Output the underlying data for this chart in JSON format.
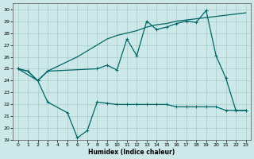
{
  "xlabel": "Humidex (Indice chaleur)",
  "bg_color": "#cce8e8",
  "grid_color": "#aacccc",
  "line_color": "#006666",
  "ylim": [
    19,
    30.5
  ],
  "yticks": [
    19,
    20,
    21,
    22,
    23,
    24,
    25,
    26,
    27,
    28,
    29,
    30
  ],
  "xlim": [
    -0.5,
    23.5
  ],
  "xticks": [
    0,
    1,
    2,
    3,
    4,
    5,
    6,
    7,
    8,
    9,
    10,
    11,
    12,
    13,
    14,
    15,
    16,
    17,
    18,
    19,
    20,
    21,
    22,
    23
  ],
  "x": [
    0,
    1,
    2,
    3,
    4,
    5,
    6,
    7,
    8,
    9,
    10,
    11,
    12,
    13,
    14,
    15,
    16,
    17,
    18,
    19,
    20,
    21,
    22,
    23
  ],
  "y_line1": [
    25.0,
    24.8,
    24.0,
    24.8,
    25.2,
    25.6,
    26.0,
    26.5,
    27.0,
    27.5,
    27.8,
    28.0,
    28.2,
    28.5,
    28.7,
    28.8,
    29.0,
    29.1,
    29.2,
    29.3,
    29.4,
    29.5,
    29.6,
    29.7
  ],
  "y_line2_x": [
    0,
    1,
    2,
    3,
    8,
    9,
    10,
    11,
    12,
    13,
    14,
    15,
    16,
    17,
    18,
    19,
    20,
    21,
    22,
    23
  ],
  "y_line2": [
    25.0,
    24.8,
    24.0,
    24.8,
    25.0,
    25.3,
    24.9,
    27.5,
    26.1,
    29.0,
    28.3,
    28.5,
    28.8,
    29.0,
    28.9,
    29.9,
    26.1,
    24.2,
    21.5,
    21.5
  ],
  "y_line3_x": [
    0,
    2,
    3,
    5,
    6,
    7,
    8,
    9,
    10,
    11,
    12,
    13,
    14,
    15,
    16,
    17,
    18,
    19,
    20,
    21,
    22,
    23
  ],
  "y_line3": [
    25.0,
    24.0,
    22.2,
    21.3,
    19.2,
    19.8,
    22.2,
    22.1,
    22.0,
    22.0,
    22.0,
    22.0,
    22.0,
    22.0,
    21.8,
    21.8,
    21.8,
    21.8,
    21.8,
    21.5,
    21.5,
    21.5
  ]
}
